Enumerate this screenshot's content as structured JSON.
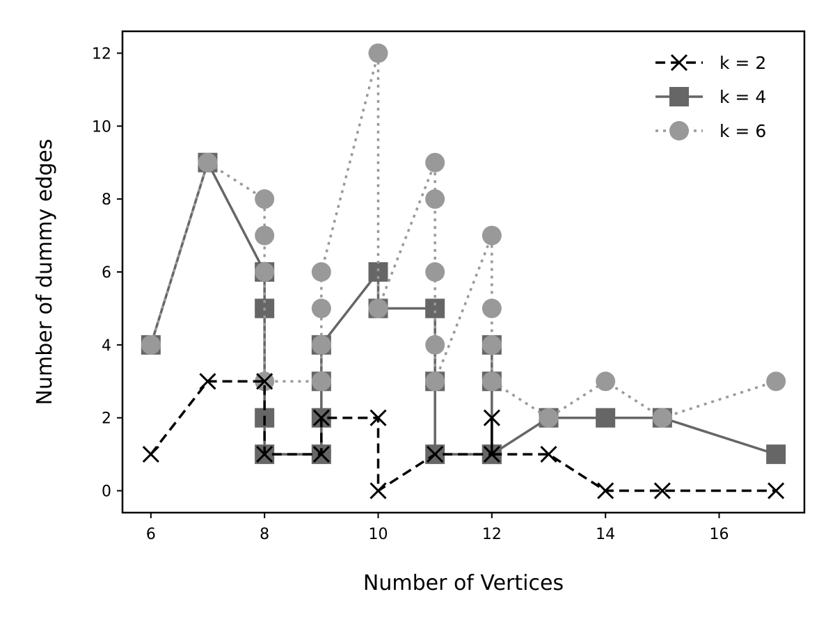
{
  "chart_data": {
    "type": "line",
    "title": "",
    "xlabel": "Number of Vertices",
    "ylabel": "Number of dummy edges",
    "xlim": [
      5.5,
      17.5
    ],
    "ylim": [
      -0.6,
      12.6
    ],
    "xticks": [
      6,
      8,
      10,
      12,
      14,
      16
    ],
    "yticks": [
      0,
      2,
      4,
      6,
      8,
      10,
      12
    ],
    "grid": false,
    "legend_position": "top-right",
    "series": [
      {
        "name": "k = 2",
        "color": "#000000",
        "linestyle": "dashed",
        "marker": "x",
        "points": [
          [
            6,
            1
          ],
          [
            7,
            3
          ],
          [
            8,
            3
          ],
          [
            8,
            1
          ],
          [
            9,
            1
          ],
          [
            9,
            2
          ],
          [
            10,
            2
          ],
          [
            10,
            0
          ],
          [
            11,
            1
          ],
          [
            12,
            1
          ],
          [
            12,
            2
          ],
          [
            12,
            1
          ],
          [
            13,
            1
          ],
          [
            14,
            0
          ],
          [
            15,
            0
          ],
          [
            17,
            0
          ]
        ]
      },
      {
        "name": "k = 4",
        "color": "#666666",
        "linestyle": "solid",
        "marker": "square",
        "points": [
          [
            6,
            4
          ],
          [
            7,
            9
          ],
          [
            8,
            6
          ],
          [
            8,
            5
          ],
          [
            8,
            2
          ],
          [
            8,
            1
          ],
          [
            9,
            1
          ],
          [
            9,
            2
          ],
          [
            9,
            3
          ],
          [
            9,
            4
          ],
          [
            10,
            6
          ],
          [
            10,
            5
          ],
          [
            11,
            5
          ],
          [
            11,
            3
          ],
          [
            11,
            1
          ],
          [
            12,
            1
          ],
          [
            12,
            3
          ],
          [
            12,
            4
          ],
          [
            12,
            1
          ],
          [
            13,
            2
          ],
          [
            14,
            2
          ],
          [
            15,
            2
          ],
          [
            17,
            1
          ]
        ]
      },
      {
        "name": "k = 6",
        "color": "#999999",
        "linestyle": "dotted",
        "marker": "circle",
        "points": [
          [
            6,
            4
          ],
          [
            7,
            9
          ],
          [
            8,
            8
          ],
          [
            8,
            7
          ],
          [
            8,
            6
          ],
          [
            8,
            3
          ],
          [
            9,
            3
          ],
          [
            9,
            4
          ],
          [
            9,
            5
          ],
          [
            9,
            6
          ],
          [
            10,
            12
          ],
          [
            10,
            5
          ],
          [
            11,
            9
          ],
          [
            11,
            8
          ],
          [
            11,
            6
          ],
          [
            11,
            4
          ],
          [
            11,
            3
          ],
          [
            12,
            7
          ],
          [
            12,
            5
          ],
          [
            12,
            4
          ],
          [
            12,
            3
          ],
          [
            13,
            2
          ],
          [
            14,
            3
          ],
          [
            15,
            2
          ],
          [
            17,
            3
          ]
        ]
      }
    ]
  }
}
